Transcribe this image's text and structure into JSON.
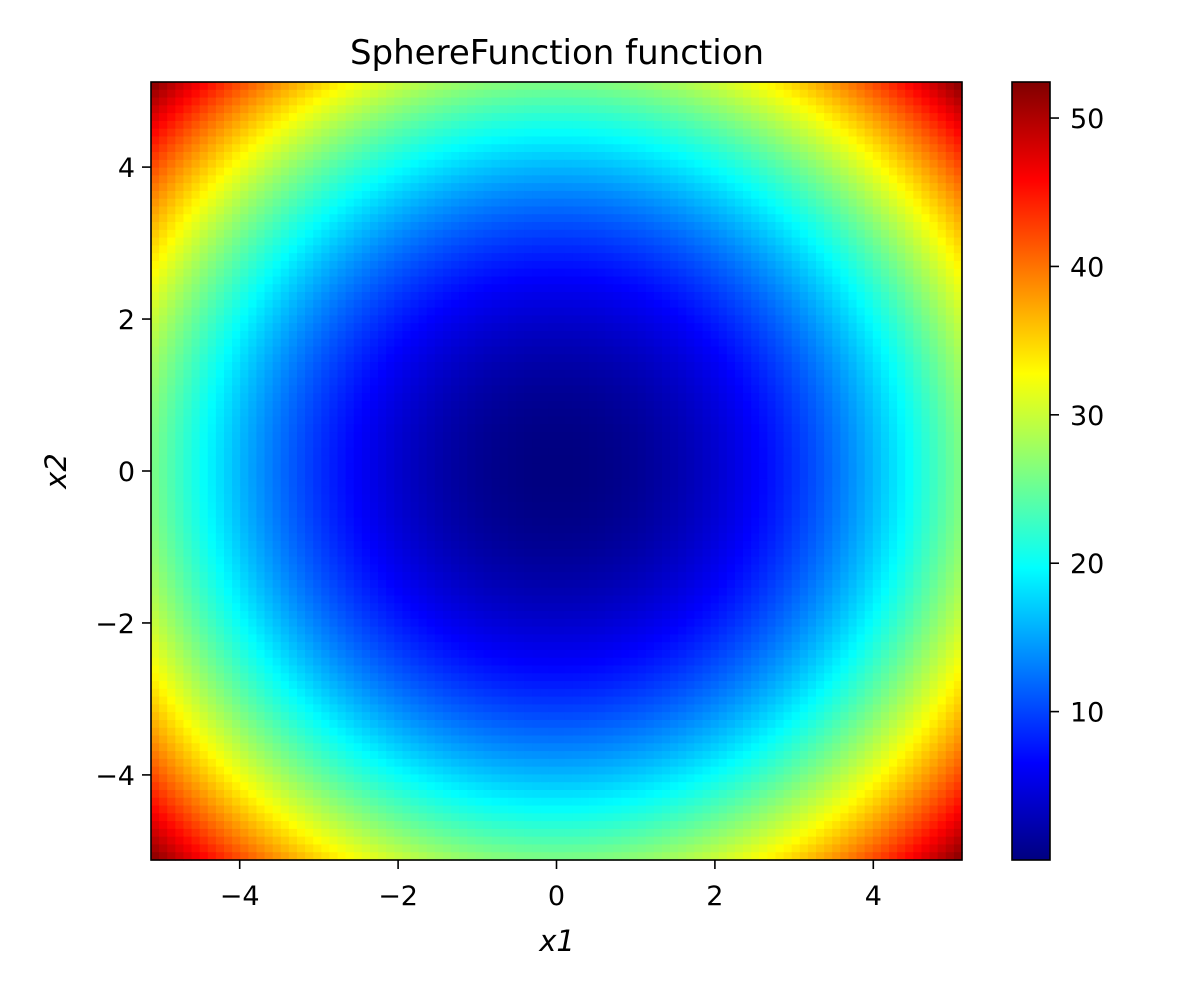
{
  "chart_data": {
    "type": "heatmap",
    "title": "SphereFunction function",
    "xlabel": "x1",
    "ylabel": "x2",
    "function": "x1^2 + x2^2",
    "xlim": [
      -5.12,
      5.12
    ],
    "ylim": [
      -5.12,
      5.12
    ],
    "grid_resolution": 100,
    "x_ticks": [
      -4,
      -2,
      0,
      2,
      4
    ],
    "x_tick_labels": [
      "−4",
      "−2",
      "0",
      "2",
      "4"
    ],
    "y_ticks": [
      -4,
      -2,
      0,
      2,
      4
    ],
    "y_tick_labels": [
      "−4",
      "−2",
      "0",
      "2",
      "4"
    ],
    "colormap": "jet",
    "colorbar": {
      "vmin": 0.0,
      "vmax": 52.4288,
      "ticks": [
        10,
        20,
        30,
        40,
        50
      ],
      "tick_labels": [
        "10",
        "20",
        "30",
        "40",
        "50"
      ]
    },
    "grid": false
  }
}
